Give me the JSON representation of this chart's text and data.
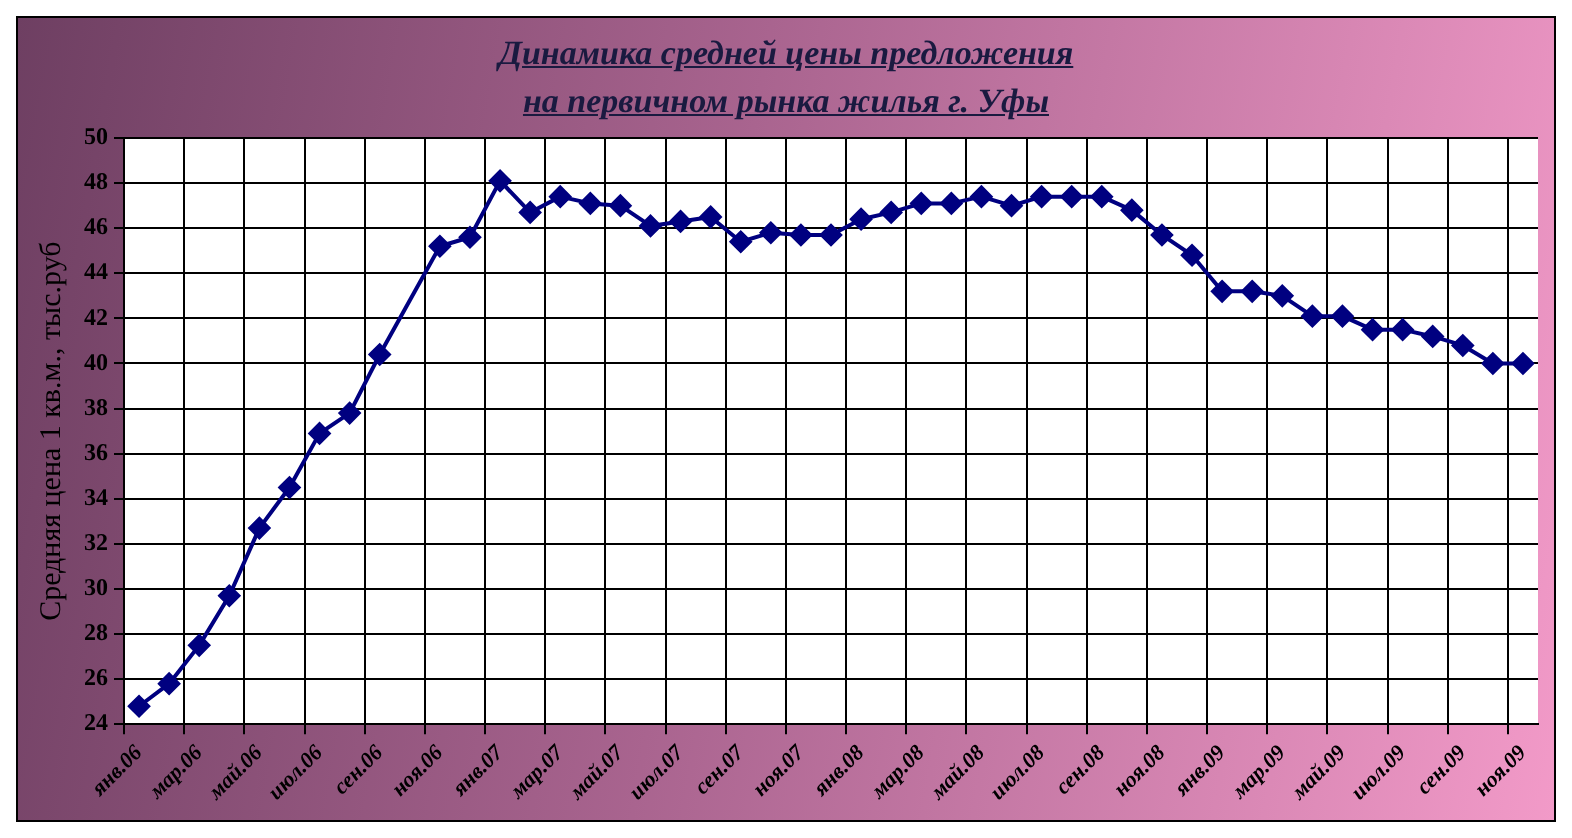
{
  "chart_data": {
    "type": "line",
    "title": "Динамика средней цены предложения\nна первичном рынка жилья г. Уфы",
    "ylabel": "Средняя цена 1 кв.м., тыс.руб",
    "categories": [
      "янв.06",
      null,
      "мар.06",
      null,
      "май.06",
      null,
      "июл.06",
      null,
      "сен.06",
      null,
      "ноя.06",
      null,
      "янв.07",
      null,
      "мар.07",
      null,
      "май.07",
      null,
      "июл.07",
      null,
      "сен.07",
      null,
      "ноя.07",
      null,
      "янв.08",
      null,
      "мар.08",
      null,
      "май.08",
      null,
      "июл.08",
      null,
      "сен.08",
      null,
      "ноя.08",
      null,
      "янв.09",
      null,
      "мар.09",
      null,
      "май.09",
      null,
      "июл.09",
      null,
      "сен.09",
      null,
      "ноя.09"
    ],
    "series": [
      {
        "color": "#000080",
        "values": [
          24.8,
          25.8,
          27.5,
          29.7,
          32.7,
          34.5,
          36.9,
          37.8,
          40.4,
          null,
          45.2,
          45.6,
          48.1,
          46.7,
          47.4,
          47.1,
          47.0,
          46.1,
          46.3,
          46.5,
          45.4,
          45.8,
          45.7,
          45.7,
          46.4,
          46.7,
          47.1,
          47.1,
          47.4,
          47.0,
          47.4,
          47.4,
          47.4,
          46.8,
          45.7,
          44.8,
          43.2,
          43.2,
          43.0,
          42.1,
          42.1,
          41.5,
          41.5,
          41.2,
          40.8,
          40.0,
          40.0
        ]
      }
    ],
    "ylim": [
      24,
      50
    ],
    "yticks": [
      24,
      26,
      28,
      30,
      32,
      34,
      36,
      38,
      40,
      42,
      44,
      46,
      48,
      50
    ],
    "grid": true,
    "marker": "diamond",
    "line_style": "solid",
    "legend": false
  }
}
